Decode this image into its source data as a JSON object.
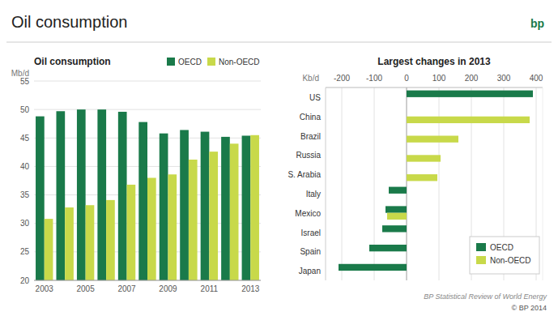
{
  "title": "Oil consumption",
  "annotations": [
    "bp",
    "BP Statistical Review of World Energy",
    "© BP 2014"
  ],
  "chart_data": [
    {
      "type": "bar",
      "title": "Oil consumption",
      "y_label": "Mb/d",
      "categories": [
        "2003",
        null,
        "2005",
        null,
        "2007",
        null,
        "2009",
        null,
        "2011",
        null,
        "2013"
      ],
      "series": [
        {
          "name": "OECD",
          "color": "#1a7a4a",
          "values": [
            48.8,
            49.7,
            50.0,
            50.0,
            49.6,
            47.8,
            45.8,
            46.4,
            46.1,
            45.2,
            45.4
          ]
        },
        {
          "name": "Non-OECD",
          "color": "#c8d94a",
          "values": [
            30.8,
            32.8,
            33.2,
            34.1,
            36.8,
            38.0,
            38.6,
            41.2,
            42.6,
            44.0,
            45.5
          ]
        }
      ],
      "ylim": [
        20,
        55
      ],
      "yticks": [
        20,
        25,
        30,
        35,
        40,
        45,
        50,
        55
      ],
      "grid": true,
      "legend": "upper right"
    },
    {
      "type": "bar",
      "orientation": "horizontal",
      "title": "Largest changes in 2013",
      "x_label": "Kb/d",
      "categories": [
        "Japan",
        "Spain",
        "Israel",
        "Mexico",
        "Italy",
        "S. Arabia",
        "Russia",
        "Brazil",
        "China",
        "US"
      ],
      "series": [
        {
          "name": "OECD",
          "color": "#1a7a4a",
          "values": [
            -210,
            -115,
            -75,
            -65,
            -55,
            0,
            0,
            0,
            0,
            390
          ]
        },
        {
          "name": "Non-OECD",
          "color": "#c8d94a",
          "values": [
            0,
            0,
            0,
            -60,
            0,
            95,
            105,
            160,
            380,
            0
          ]
        }
      ],
      "xlim": [
        -250,
        420
      ],
      "xticks": [
        -200,
        -100,
        0,
        100,
        200,
        300,
        400
      ],
      "grid": true,
      "legend": "lower right"
    }
  ]
}
